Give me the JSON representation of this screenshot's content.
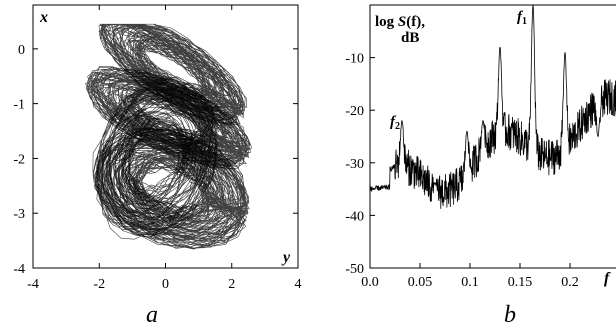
{
  "chart_data": [
    {
      "type": "line",
      "panel": "a",
      "xlabel": "y",
      "ylabel": "x",
      "xlim": [
        -4,
        4
      ],
      "ylim": [
        -4,
        0.8
      ],
      "xticks": [
        -4,
        -2,
        0,
        2,
        4
      ],
      "yticks": [
        0,
        -1,
        -2,
        -3,
        -4
      ],
      "grid": false,
      "description_of_series": "chaotic attractor trajectory"
    },
    {
      "type": "line",
      "panel": "b",
      "xlabel": "f",
      "ylabel": "log S(f), dB",
      "ylabel_line1_prefix": "log ",
      "ylabel_line1_S": "S",
      "ylabel_line1_f": "(f),",
      "ylabel_line2": "dB",
      "xlim": [
        0.0,
        0.25
      ],
      "ylim": [
        -50,
        0
      ],
      "xticks": [
        0.0,
        0.05,
        0.1,
        0.15,
        0.2
      ],
      "xtick_labels": [
        "0.0",
        "0.05",
        "0.1",
        "0.15",
        "0.2"
      ],
      "yticks": [
        -10,
        -20,
        -30,
        -40,
        -50
      ],
      "grid": false,
      "annotations": [
        {
          "label": "f",
          "sub": "1",
          "x": 0.163,
          "y": -3
        },
        {
          "label": "f",
          "sub": "2",
          "x": 0.032,
          "y": -23
        }
      ],
      "peaks": [
        {
          "x": 0.032,
          "y": -22
        },
        {
          "x": 0.065,
          "y": -34
        },
        {
          "x": 0.097,
          "y": -24
        },
        {
          "x": 0.113,
          "y": -22
        },
        {
          "x": 0.13,
          "y": -8
        },
        {
          "x": 0.163,
          "y": 0
        },
        {
          "x": 0.195,
          "y": -9
        },
        {
          "x": 0.228,
          "y": -25
        }
      ]
    }
  ]
}
